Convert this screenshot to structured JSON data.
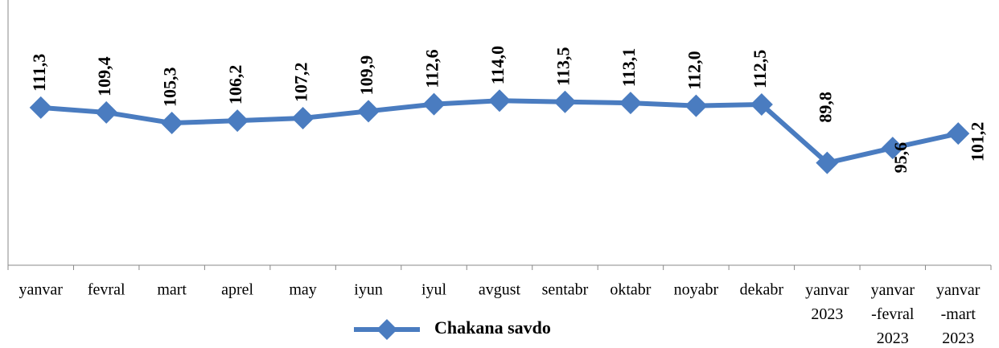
{
  "chart_data": {
    "type": "line",
    "categories": [
      "yanvar",
      "fevral",
      "mart",
      "aprel",
      "may",
      "iyun",
      "iyul",
      "avgust",
      "sentabr",
      "oktabr",
      "noyabr",
      "dekabr",
      "yanvar\n2023",
      "yanvar\n-fevral\n2023",
      "yanvar\n-mart\n2023"
    ],
    "series": [
      {
        "name": "Chakana savdo",
        "color": "#4a7cc0",
        "values": [
          111.3,
          109.4,
          105.3,
          106.2,
          107.2,
          109.9,
          112.6,
          114.0,
          113.5,
          113.1,
          112.0,
          112.5,
          89.8,
          95.6,
          101.2
        ],
        "value_labels": [
          "111,3",
          "109,4",
          "105,3",
          "106,2",
          "107,2",
          "109,9",
          "112,6",
          "114,0",
          "113,5",
          "113,1",
          "112,0",
          "112,5",
          "89,8",
          "95,6",
          "101,2"
        ]
      }
    ],
    "ylim": [
      50,
      150
    ],
    "legend": "bottom"
  }
}
